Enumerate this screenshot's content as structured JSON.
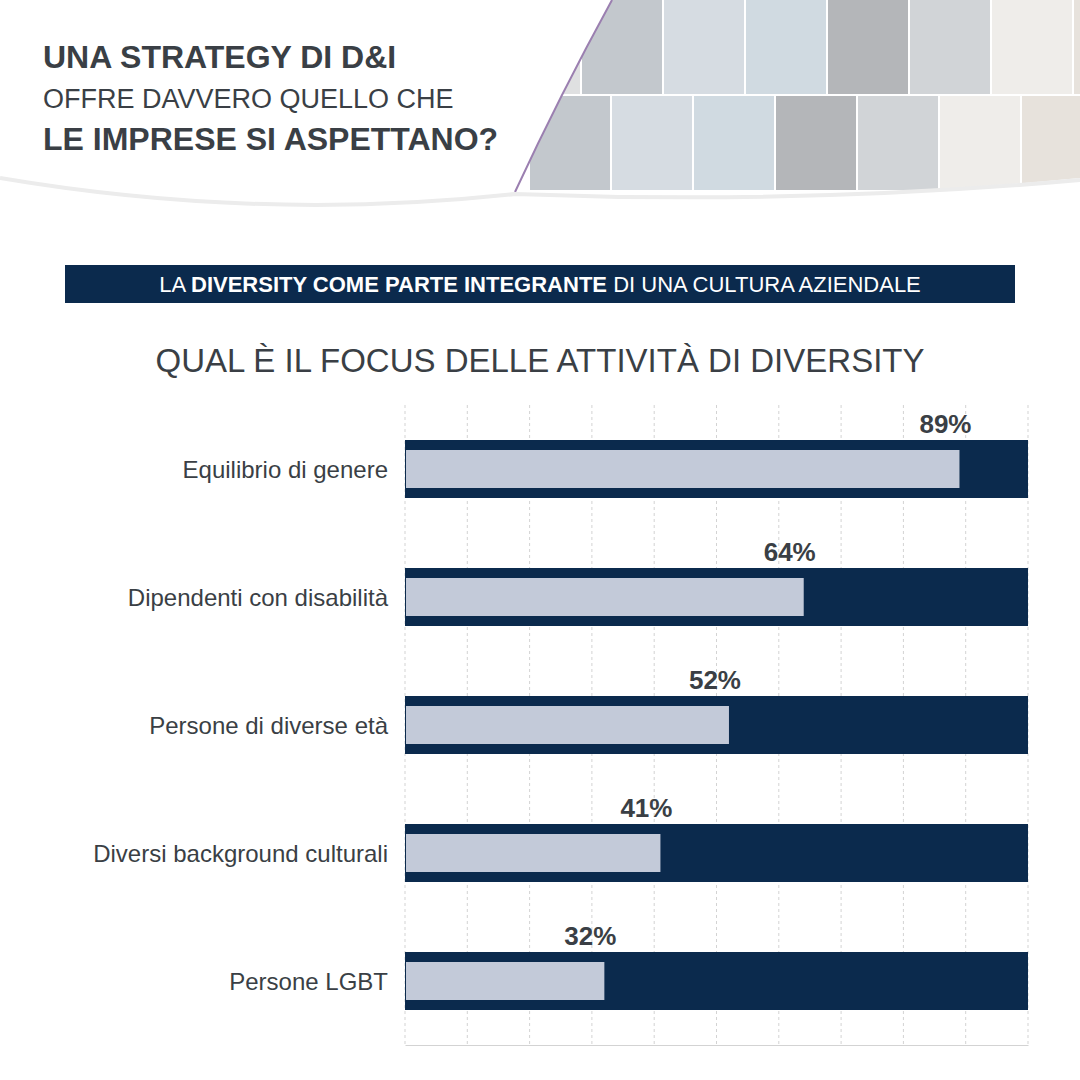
{
  "header": {
    "lines": [
      "UNA STRATEGY DI D&I",
      "OFFRE DAVVERO QUELLO CHE",
      "LE IMPRESE SI ASPETTANO?"
    ]
  },
  "banner": {
    "segments": [
      "LA ",
      "DIVERSITY COME PARTE INTEGRANTE",
      " DI UNA CULTURA AZIENDALE"
    ]
  },
  "chart_data": {
    "type": "bar",
    "orientation": "horizontal",
    "title": "QUAL È IL FOCUS DELLE ATTIVITÀ DI DIVERSITY",
    "categories": [
      "Equilibrio di genere",
      "Dipendenti con disabilità",
      "Persone di diverse età",
      "Diversi background culturali",
      "Persone LGBT"
    ],
    "values": [
      89,
      64,
      52,
      41,
      32
    ],
    "value_labels": [
      "89%",
      "64%",
      "52%",
      "41%",
      "32%"
    ],
    "data_labels": true,
    "color": "#c3cad9",
    "xlim": [
      0,
      100
    ],
    "xticks": [
      0,
      10,
      20,
      30,
      40,
      50,
      60,
      70,
      80,
      90,
      100
    ],
    "grid": true,
    "tick_labels": "y"
  }
}
